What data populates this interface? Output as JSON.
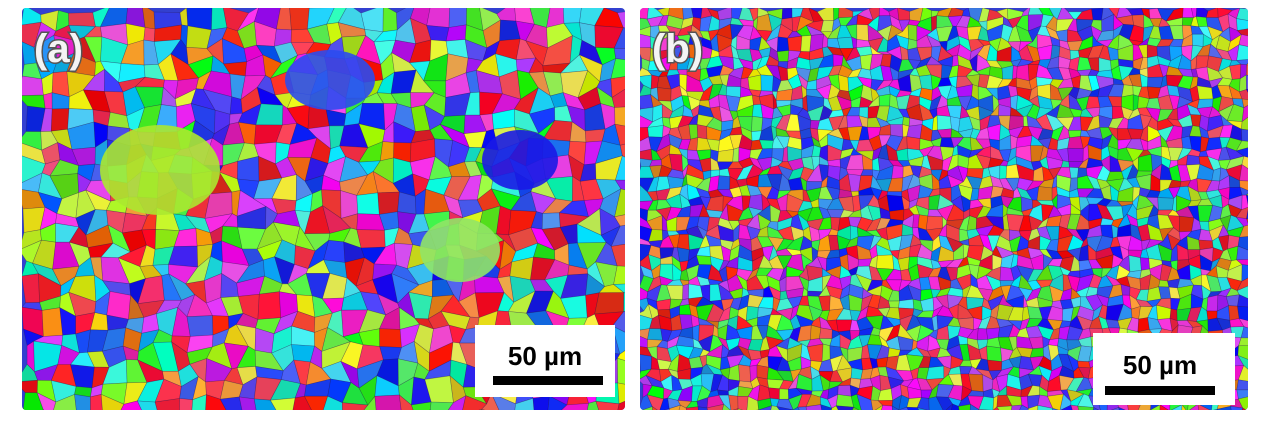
{
  "panels": [
    {
      "label": "(a)",
      "scale_bar": "50 µm"
    },
    {
      "label": "(b)",
      "scale_bar": "50 µm"
    }
  ]
}
